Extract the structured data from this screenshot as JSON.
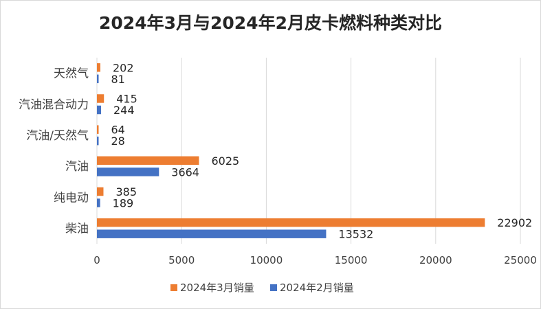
{
  "chart_data": {
    "type": "bar",
    "orientation": "horizontal",
    "title": "2024年3月与2024年2月皮卡燃料种类对比",
    "categories": [
      "天然气",
      "汽油混合动力",
      "汽油/天然气",
      "汽油",
      "纯电动",
      "柴油"
    ],
    "series": [
      {
        "name": "2024年3月销量",
        "color": "#ED7D31",
        "values": [
          202,
          415,
          64,
          6025,
          385,
          22902
        ]
      },
      {
        "name": "2024年2月销量",
        "color": "#4472C4",
        "values": [
          81,
          244,
          28,
          3664,
          189,
          13532
        ]
      }
    ],
    "xlim": [
      0,
      25000
    ],
    "xticks": [
      0,
      5000,
      10000,
      15000,
      20000,
      25000
    ],
    "grid": true,
    "legend_position": "bottom"
  }
}
